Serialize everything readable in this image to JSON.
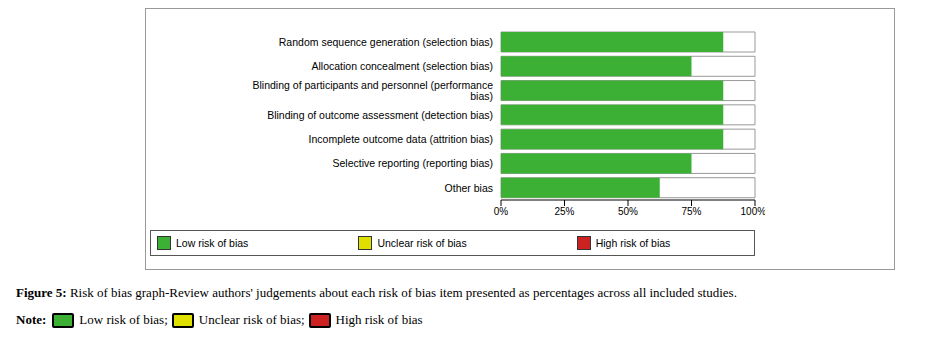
{
  "chart_data": {
    "type": "bar",
    "orientation": "horizontal",
    "stacked": true,
    "grid": false,
    "legend": "bottom",
    "categories": [
      "Random sequence generation (selection bias)",
      "Allocation concealment (selection bias)",
      "Blinding of participants and personnel (performance bias)",
      "Blinding of outcome assessment (detection bias)",
      "Incomplete outcome data (attrition bias)",
      "Selective reporting (reporting bias)",
      "Other bias"
    ],
    "series": [
      {
        "name": "Low risk of bias",
        "color": "#3cb034",
        "values": [
          87.5,
          75,
          87.5,
          87.5,
          87.5,
          75,
          62.5
        ]
      },
      {
        "name": "Unclear risk of bias",
        "color": "#e0e000",
        "values": [
          0,
          0,
          0,
          0,
          0,
          0,
          0
        ]
      },
      {
        "name": "High risk of bias",
        "color": "#cc2222",
        "values": [
          0,
          0,
          0,
          0,
          0,
          0,
          0
        ]
      }
    ],
    "xlim": [
      0,
      100
    ],
    "xticks": [
      {
        "value": 0,
        "label": "0%"
      },
      {
        "value": 25,
        "label": "25%"
      },
      {
        "value": 50,
        "label": "50%"
      },
      {
        "value": 75,
        "label": "75%"
      },
      {
        "value": 100,
        "label": "100%"
      }
    ]
  },
  "caption": {
    "label": "Figure 5:",
    "text": "Risk of bias graph-Review authors' judgements about each risk of bias item presented as percentages across all included studies."
  },
  "note": {
    "label": "Note:",
    "separator": ";"
  }
}
